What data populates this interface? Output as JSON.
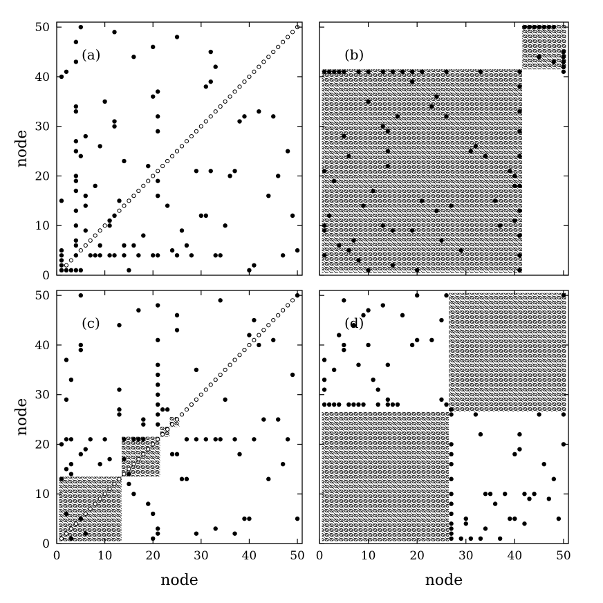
{
  "chart_data": [
    {
      "type": "scatter",
      "panel": "(a)",
      "xlabel": "",
      "ylabel": "node",
      "xlim": [
        0,
        51
      ],
      "ylim": [
        0,
        51
      ],
      "xticks": [
        0,
        10,
        20,
        30,
        40,
        50
      ],
      "yticks": [
        0,
        10,
        20,
        30,
        40,
        50
      ],
      "x_tick_labels_shown": false,
      "y_tick_labels_shown": true,
      "diagonal": true,
      "blocks": [],
      "points": [
        [
          1,
          40
        ],
        [
          1,
          15
        ],
        [
          2,
          41
        ],
        [
          4,
          43
        ],
        [
          4,
          47
        ],
        [
          5,
          50
        ],
        [
          12,
          49
        ],
        [
          16,
          44
        ],
        [
          20,
          46
        ],
        [
          25,
          48
        ],
        [
          4,
          33
        ],
        [
          4,
          34
        ],
        [
          4,
          27
        ],
        [
          4,
          25
        ],
        [
          4,
          20
        ],
        [
          4,
          19
        ],
        [
          4,
          17
        ],
        [
          4,
          13
        ],
        [
          4,
          10
        ],
        [
          4,
          7
        ],
        [
          4,
          6
        ],
        [
          5,
          24
        ],
        [
          6,
          28
        ],
        [
          6,
          16
        ],
        [
          6,
          14
        ],
        [
          6,
          9
        ],
        [
          8,
          18
        ],
        [
          9,
          26
        ],
        [
          9,
          6
        ],
        [
          10,
          35
        ],
        [
          12,
          31
        ],
        [
          12,
          30
        ],
        [
          12,
          12
        ],
        [
          11,
          10
        ],
        [
          11,
          11
        ],
        [
          12,
          4
        ],
        [
          13,
          15
        ],
        [
          14,
          23
        ],
        [
          14,
          6
        ],
        [
          16,
          6
        ],
        [
          15,
          1
        ],
        [
          18,
          8
        ],
        [
          19,
          22
        ],
        [
          20,
          36
        ],
        [
          21,
          37
        ],
        [
          21,
          32
        ],
        [
          21,
          29
        ],
        [
          21,
          19
        ],
        [
          21,
          16
        ],
        [
          23,
          14
        ],
        [
          24,
          5
        ],
        [
          26,
          9
        ],
        [
          27,
          6
        ],
        [
          29,
          21
        ],
        [
          30,
          12
        ],
        [
          31,
          12
        ],
        [
          31,
          38
        ],
        [
          32,
          39
        ],
        [
          32,
          45
        ],
        [
          33,
          42
        ],
        [
          32,
          21
        ],
        [
          37,
          21
        ],
        [
          36,
          20
        ],
        [
          35,
          10
        ],
        [
          38,
          31
        ],
        [
          39,
          32
        ],
        [
          42,
          33
        ],
        [
          44,
          16
        ],
        [
          45,
          32
        ],
        [
          46,
          20
        ],
        [
          48,
          25
        ],
        [
          49,
          12
        ],
        [
          50,
          5
        ],
        [
          1,
          1
        ],
        [
          1,
          2
        ],
        [
          1,
          3
        ],
        [
          1,
          4
        ],
        [
          1,
          5
        ],
        [
          2,
          1
        ],
        [
          3,
          1
        ],
        [
          4,
          1
        ],
        [
          5,
          1
        ],
        [
          4,
          4
        ],
        [
          7,
          4
        ],
        [
          8,
          4
        ],
        [
          9,
          4
        ],
        [
          11,
          4
        ],
        [
          14,
          4
        ],
        [
          17,
          4
        ],
        [
          20,
          4
        ],
        [
          21,
          4
        ],
        [
          25,
          4
        ],
        [
          28,
          4
        ],
        [
          33,
          4
        ],
        [
          34,
          4
        ],
        [
          40,
          1
        ],
        [
          41,
          2
        ],
        [
          47,
          4
        ]
      ]
    },
    {
      "type": "scatter",
      "panel": "(b)",
      "xlabel": "",
      "ylabel": "",
      "xlim": [
        0,
        51
      ],
      "ylim": [
        0,
        51
      ],
      "xticks": [
        0,
        10,
        20,
        30,
        40,
        50
      ],
      "yticks": [
        0,
        10,
        20,
        30,
        40,
        50
      ],
      "x_tick_labels_shown": false,
      "y_tick_labels_shown": false,
      "diagonal": false,
      "blocks": [
        [
          1,
          41
        ],
        [
          42,
          50
        ]
      ],
      "points": [
        [
          42,
          50
        ],
        [
          43,
          50
        ],
        [
          44,
          50
        ],
        [
          45,
          50
        ],
        [
          46,
          50
        ],
        [
          47,
          50
        ],
        [
          48,
          50
        ],
        [
          50,
          45
        ],
        [
          50,
          44
        ],
        [
          50,
          43
        ],
        [
          50,
          42
        ],
        [
          50,
          41
        ],
        [
          45,
          44
        ],
        [
          48,
          43
        ],
        [
          1,
          41
        ],
        [
          2,
          41
        ],
        [
          3,
          41
        ],
        [
          4,
          41
        ],
        [
          5,
          41
        ],
        [
          8,
          41
        ],
        [
          10,
          41
        ],
        [
          13,
          41
        ],
        [
          15,
          41
        ],
        [
          17,
          41
        ],
        [
          19,
          41
        ],
        [
          21,
          41
        ],
        [
          26,
          41
        ],
        [
          33,
          41
        ],
        [
          41,
          41
        ],
        [
          41,
          38
        ],
        [
          41,
          33
        ],
        [
          41,
          29
        ],
        [
          41,
          24
        ],
        [
          41,
          18
        ],
        [
          41,
          13
        ],
        [
          41,
          8
        ],
        [
          41,
          4
        ],
        [
          41,
          1
        ],
        [
          1,
          21
        ],
        [
          1,
          10
        ],
        [
          1,
          9
        ],
        [
          1,
          4
        ],
        [
          2,
          12
        ],
        [
          3,
          19
        ],
        [
          4,
          6
        ],
        [
          5,
          28
        ],
        [
          6,
          24
        ],
        [
          6,
          5
        ],
        [
          7,
          7
        ],
        [
          8,
          3
        ],
        [
          9,
          14
        ],
        [
          10,
          35
        ],
        [
          10,
          1
        ],
        [
          11,
          17
        ],
        [
          13,
          10
        ],
        [
          13,
          30
        ],
        [
          14,
          29
        ],
        [
          14,
          22
        ],
        [
          14,
          25
        ],
        [
          15,
          2
        ],
        [
          15,
          9
        ],
        [
          16,
          32
        ],
        [
          19,
          9
        ],
        [
          19,
          39
        ],
        [
          20,
          1
        ],
        [
          21,
          15
        ],
        [
          23,
          34
        ],
        [
          24,
          13
        ],
        [
          24,
          36
        ],
        [
          25,
          7
        ],
        [
          26,
          32
        ],
        [
          27,
          14
        ],
        [
          29,
          5
        ],
        [
          31,
          25
        ],
        [
          32,
          26
        ],
        [
          34,
          24
        ],
        [
          36,
          15
        ],
        [
          37,
          10
        ],
        [
          39,
          21
        ],
        [
          40,
          18
        ],
        [
          40,
          20
        ],
        [
          40,
          11
        ]
      ]
    },
    {
      "type": "scatter",
      "panel": "(c)",
      "xlabel": "node",
      "ylabel": "node",
      "xlim": [
        0,
        51
      ],
      "ylim": [
        0,
        51
      ],
      "xticks": [
        0,
        10,
        20,
        30,
        40,
        50
      ],
      "yticks": [
        0,
        10,
        20,
        30,
        40,
        50
      ],
      "x_tick_labels_shown": true,
      "y_tick_labels_shown": true,
      "diagonal": true,
      "blocks": [
        [
          1,
          13
        ],
        [
          14,
          21
        ],
        [
          22,
          23
        ],
        [
          24,
          25
        ]
      ],
      "points": [
        [
          5,
          50
        ],
        [
          5,
          40
        ],
        [
          5,
          39
        ],
        [
          13,
          44
        ],
        [
          17,
          47
        ],
        [
          21,
          48
        ],
        [
          25,
          46
        ],
        [
          25,
          43
        ],
        [
          34,
          49
        ],
        [
          2,
          37
        ],
        [
          3,
          33
        ],
        [
          2,
          29
        ],
        [
          1,
          20
        ],
        [
          2,
          21
        ],
        [
          3,
          21
        ],
        [
          1,
          13
        ],
        [
          2,
          15
        ],
        [
          3,
          16
        ],
        [
          2,
          6
        ],
        [
          3,
          14
        ],
        [
          3,
          1
        ],
        [
          5,
          5
        ],
        [
          5,
          18
        ],
        [
          6,
          2
        ],
        [
          6,
          19
        ],
        [
          7,
          21
        ],
        [
          9,
          16
        ],
        [
          10,
          21
        ],
        [
          11,
          17
        ],
        [
          14,
          17
        ],
        [
          14,
          21
        ],
        [
          16,
          21
        ],
        [
          18,
          21
        ],
        [
          19,
          8
        ],
        [
          20,
          6
        ],
        [
          20,
          1
        ],
        [
          21,
          2
        ],
        [
          21,
          3
        ],
        [
          21,
          41
        ],
        [
          21,
          36
        ],
        [
          21,
          34
        ],
        [
          21,
          32
        ],
        [
          21,
          30
        ],
        [
          21,
          28
        ],
        [
          21,
          26
        ],
        [
          21,
          24
        ],
        [
          22,
          27
        ],
        [
          23,
          27
        ],
        [
          24,
          18
        ],
        [
          25,
          18
        ],
        [
          26,
          13
        ],
        [
          27,
          13
        ],
        [
          27,
          21
        ],
        [
          29,
          35
        ],
        [
          29,
          2
        ],
        [
          29,
          21
        ],
        [
          31,
          21
        ],
        [
          33,
          21
        ],
        [
          34,
          21
        ],
        [
          35,
          29
        ],
        [
          33,
          3
        ],
        [
          37,
          2
        ],
        [
          37,
          21
        ],
        [
          38,
          18
        ],
        [
          39,
          5
        ],
        [
          40,
          5
        ],
        [
          40,
          42
        ],
        [
          41,
          45
        ],
        [
          41,
          21
        ],
        [
          42,
          40
        ],
        [
          43,
          25
        ],
        [
          44,
          13
        ],
        [
          45,
          41
        ],
        [
          46,
          25
        ],
        [
          47,
          16
        ],
        [
          48,
          21
        ],
        [
          49,
          34
        ],
        [
          50,
          5
        ],
        [
          50,
          50
        ],
        [
          13,
          31
        ],
        [
          13,
          27
        ],
        [
          13,
          26
        ],
        [
          15,
          12
        ],
        [
          15,
          14
        ],
        [
          16,
          10
        ],
        [
          18,
          24
        ],
        [
          18,
          25
        ],
        [
          17,
          21
        ]
      ]
    },
    {
      "type": "scatter",
      "panel": "(d)",
      "xlabel": "node",
      "ylabel": "",
      "xlim": [
        0,
        51
      ],
      "ylim": [
        0,
        51
      ],
      "xticks": [
        0,
        10,
        20,
        30,
        40,
        50
      ],
      "yticks": [
        0,
        10,
        20,
        30,
        40,
        50
      ],
      "x_tick_labels_shown": true,
      "y_tick_labels_shown": false,
      "diagonal": false,
      "blocks": [
        [
          1,
          26
        ],
        [
          27,
          50
        ]
      ],
      "points": [
        [
          1,
          28
        ],
        [
          2,
          28
        ],
        [
          3,
          28
        ],
        [
          4,
          28
        ],
        [
          6,
          28
        ],
        [
          7,
          28
        ],
        [
          8,
          28
        ],
        [
          9,
          28
        ],
        [
          12,
          28
        ],
        [
          14,
          28
        ],
        [
          15,
          28
        ],
        [
          16,
          28
        ],
        [
          25,
          29
        ],
        [
          26,
          28
        ],
        [
          1,
          37
        ],
        [
          1,
          31
        ],
        [
          1,
          33
        ],
        [
          3,
          35
        ],
        [
          4,
          42
        ],
        [
          5,
          49
        ],
        [
          5,
          40
        ],
        [
          5,
          39
        ],
        [
          7,
          44
        ],
        [
          8,
          36
        ],
        [
          9,
          46
        ],
        [
          10,
          47
        ],
        [
          10,
          40
        ],
        [
          11,
          33
        ],
        [
          12,
          31
        ],
        [
          13,
          48
        ],
        [
          14,
          29
        ],
        [
          14,
          36
        ],
        [
          17,
          46
        ],
        [
          19,
          40
        ],
        [
          20,
          41
        ],
        [
          20,
          50
        ],
        [
          23,
          41
        ],
        [
          25,
          45
        ],
        [
          26,
          50
        ],
        [
          27,
          27
        ],
        [
          27,
          26
        ],
        [
          27,
          20
        ],
        [
          27,
          18
        ],
        [
          27,
          16
        ],
        [
          27,
          13
        ],
        [
          27,
          10
        ],
        [
          27,
          8
        ],
        [
          27,
          6
        ],
        [
          27,
          4
        ],
        [
          27,
          3
        ],
        [
          27,
          2
        ],
        [
          27,
          1
        ],
        [
          29,
          1
        ],
        [
          30,
          4
        ],
        [
          30,
          5
        ],
        [
          31,
          1
        ],
        [
          32,
          26
        ],
        [
          33,
          22
        ],
        [
          33,
          1
        ],
        [
          34,
          10
        ],
        [
          34,
          3
        ],
        [
          35,
          10
        ],
        [
          36,
          8
        ],
        [
          37,
          1
        ],
        [
          38,
          10
        ],
        [
          39,
          5
        ],
        [
          40,
          5
        ],
        [
          40,
          18
        ],
        [
          41,
          19
        ],
        [
          41,
          22
        ],
        [
          42,
          10
        ],
        [
          42,
          4
        ],
        [
          43,
          9
        ],
        [
          44,
          10
        ],
        [
          45,
          26
        ],
        [
          46,
          16
        ],
        [
          47,
          9
        ],
        [
          48,
          13
        ],
        [
          49,
          5
        ],
        [
          50,
          20
        ],
        [
          50,
          26
        ],
        [
          50,
          50
        ]
      ]
    }
  ]
}
